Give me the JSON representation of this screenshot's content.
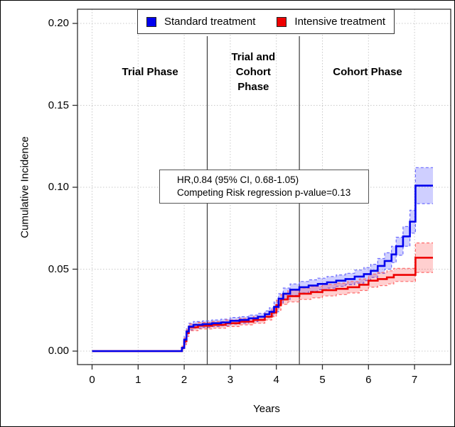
{
  "chart_data": {
    "type": "line",
    "title": "",
    "xlabel": "Years",
    "ylabel": "Cumulative Incidence",
    "xlim": [
      -0.32,
      7.79
    ],
    "ylim": [
      -0.008,
      0.208
    ],
    "grid": true,
    "x_ticks": [
      {
        "label": "0",
        "value": 0
      },
      {
        "label": "1",
        "value": 1
      },
      {
        "label": "2",
        "value": 2
      },
      {
        "label": "3",
        "value": 3
      },
      {
        "label": "4",
        "value": 4
      },
      {
        "label": "5",
        "value": 5
      },
      {
        "label": "6",
        "value": 6
      },
      {
        "label": "7",
        "value": 7
      }
    ],
    "y_ticks": [
      {
        "label": "0.00",
        "value": 0
      },
      {
        "label": "0.05",
        "value": 0.05
      },
      {
        "label": "0.10",
        "value": 0.1
      },
      {
        "label": "0.15",
        "value": 0.15
      },
      {
        "label": "0.20",
        "value": 0.2
      }
    ],
    "legend": {
      "position": "top",
      "entries": [
        {
          "label": "Standard treatment",
          "color": "#0000ee"
        },
        {
          "label": "Intensive treatment",
          "color": "#ee0000"
        }
      ]
    },
    "phase_lines": [
      2.5,
      4.5
    ],
    "phase_labels": [
      {
        "text": "Trial Phase",
        "x": 1.26
      },
      {
        "text": "Trial and\nCohort\nPhase",
        "x": 3.5
      },
      {
        "text": "Cohort Phase",
        "x": 5.98
      }
    ],
    "annotation": {
      "line1": "HR,0.84 (95% CI, 0.68-1.05)",
      "line2": "Competing Risk regression p-value=0.13"
    },
    "series": [
      {
        "name": "Standard treatment",
        "color": "#0000ee",
        "band_color": "rgba(0,0,255,0.19)",
        "band_edge_color": "#6b6bff",
        "steps_format": "[year, value, ci_lower, ci_upper]",
        "steps": [
          [
            0.0,
            0.0,
            0.0,
            0.0
          ],
          [
            1.9,
            0.0,
            0.0,
            0.0
          ],
          [
            1.95,
            0.002,
            0.001,
            0.003
          ],
          [
            2.0,
            0.007,
            0.005,
            0.009
          ],
          [
            2.05,
            0.012,
            0.01,
            0.014
          ],
          [
            2.1,
            0.015,
            0.013,
            0.017
          ],
          [
            2.2,
            0.016,
            0.014,
            0.018
          ],
          [
            2.4,
            0.0165,
            0.0145,
            0.0185
          ],
          [
            2.6,
            0.017,
            0.015,
            0.019
          ],
          [
            2.8,
            0.0175,
            0.0155,
            0.0195
          ],
          [
            3.0,
            0.0185,
            0.0165,
            0.0205
          ],
          [
            3.2,
            0.019,
            0.017,
            0.021
          ],
          [
            3.4,
            0.02,
            0.018,
            0.022
          ],
          [
            3.6,
            0.021,
            0.019,
            0.023
          ],
          [
            3.75,
            0.0225,
            0.0205,
            0.0245
          ],
          [
            3.85,
            0.024,
            0.0215,
            0.0265
          ],
          [
            3.95,
            0.027,
            0.024,
            0.03
          ],
          [
            4.05,
            0.032,
            0.029,
            0.035
          ],
          [
            4.15,
            0.035,
            0.0315,
            0.0385
          ],
          [
            4.3,
            0.0375,
            0.034,
            0.041
          ],
          [
            4.5,
            0.039,
            0.0355,
            0.0425
          ],
          [
            4.7,
            0.04,
            0.0365,
            0.0435
          ],
          [
            4.9,
            0.041,
            0.0375,
            0.0445
          ],
          [
            5.1,
            0.042,
            0.0385,
            0.0455
          ],
          [
            5.3,
            0.043,
            0.0395,
            0.0465
          ],
          [
            5.5,
            0.044,
            0.0405,
            0.0475
          ],
          [
            5.7,
            0.0455,
            0.0415,
            0.0495
          ],
          [
            5.9,
            0.047,
            0.043,
            0.051
          ],
          [
            6.05,
            0.049,
            0.045,
            0.053
          ],
          [
            6.2,
            0.052,
            0.0475,
            0.0565
          ],
          [
            6.35,
            0.055,
            0.05,
            0.06
          ],
          [
            6.5,
            0.059,
            0.054,
            0.064
          ],
          [
            6.6,
            0.064,
            0.0585,
            0.0695
          ],
          [
            6.75,
            0.07,
            0.064,
            0.076
          ],
          [
            6.9,
            0.079,
            0.072,
            0.086
          ],
          [
            7.02,
            0.101,
            0.09,
            0.112
          ],
          [
            7.4,
            0.101,
            0.09,
            0.112
          ]
        ]
      },
      {
        "name": "Intensive treatment",
        "color": "#ee0000",
        "band_color": "rgba(255,0,0,0.19)",
        "band_edge_color": "#ff6b6b",
        "steps_format": "[year, value, ci_lower, ci_upper]",
        "steps": [
          [
            0.0,
            0.0,
            0.0,
            0.0
          ],
          [
            1.9,
            0.0,
            0.0,
            0.0
          ],
          [
            1.95,
            0.002,
            0.001,
            0.003
          ],
          [
            2.0,
            0.006,
            0.004,
            0.008
          ],
          [
            2.05,
            0.011,
            0.009,
            0.013
          ],
          [
            2.1,
            0.0145,
            0.0125,
            0.0165
          ],
          [
            2.3,
            0.0155,
            0.0135,
            0.0175
          ],
          [
            2.6,
            0.016,
            0.014,
            0.018
          ],
          [
            2.9,
            0.017,
            0.015,
            0.019
          ],
          [
            3.2,
            0.018,
            0.016,
            0.02
          ],
          [
            3.5,
            0.019,
            0.017,
            0.021
          ],
          [
            3.75,
            0.021,
            0.019,
            0.023
          ],
          [
            3.9,
            0.0235,
            0.021,
            0.026
          ],
          [
            4.0,
            0.028,
            0.025,
            0.031
          ],
          [
            4.1,
            0.0315,
            0.0285,
            0.0345
          ],
          [
            4.25,
            0.0335,
            0.03,
            0.037
          ],
          [
            4.5,
            0.035,
            0.0315,
            0.0385
          ],
          [
            4.75,
            0.036,
            0.0325,
            0.0395
          ],
          [
            5.0,
            0.0372,
            0.0337,
            0.0407
          ],
          [
            5.3,
            0.038,
            0.0345,
            0.0415
          ],
          [
            5.55,
            0.039,
            0.0355,
            0.0425
          ],
          [
            5.8,
            0.0405,
            0.037,
            0.044
          ],
          [
            6.0,
            0.043,
            0.039,
            0.047
          ],
          [
            6.2,
            0.044,
            0.04,
            0.048
          ],
          [
            6.4,
            0.045,
            0.041,
            0.049
          ],
          [
            6.55,
            0.0465,
            0.0425,
            0.0505
          ],
          [
            7.0,
            0.0465,
            0.0425,
            0.0505
          ],
          [
            7.02,
            0.057,
            0.048,
            0.066
          ],
          [
            7.4,
            0.057,
            0.048,
            0.066
          ]
        ]
      }
    ]
  }
}
